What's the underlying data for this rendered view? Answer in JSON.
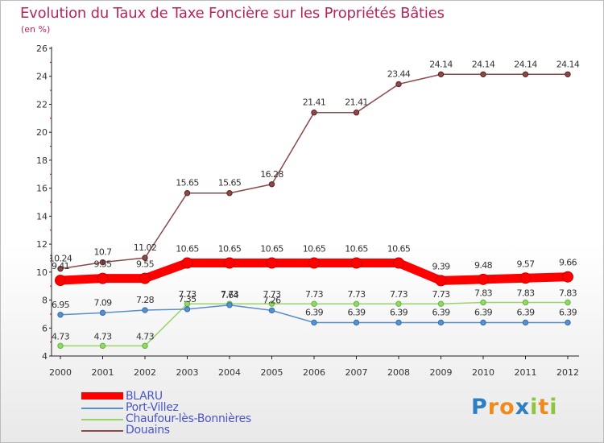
{
  "chart_data": {
    "type": "line",
    "title": "Evolution du Taux de Taxe Foncière sur les Propriétés Bâties",
    "unit_label": "(en %)",
    "xlabel": "",
    "ylabel": "",
    "ylim": [
      4,
      26
    ],
    "y_ticks": [
      4,
      6,
      8,
      10,
      12,
      14,
      16,
      18,
      20,
      22,
      24,
      26
    ],
    "categories": [
      "2000",
      "2001",
      "2002",
      "2003",
      "2004",
      "2005",
      "2006",
      "2007",
      "2008",
      "2009",
      "2010",
      "2011",
      "2012"
    ],
    "series": [
      {
        "name": "BLARU",
        "color": "#ff0000",
        "values": [
          9.41,
          9.55,
          9.55,
          10.65,
          10.65,
          10.65,
          10.65,
          10.65,
          10.65,
          9.39,
          9.48,
          9.57,
          9.66
        ],
        "labels": [
          "9.41",
          "9.55",
          "9.55",
          "10.65",
          "10.65",
          "10.65",
          "10.65",
          "10.65",
          "10.65",
          "9.39",
          "9.48",
          "9.57",
          "9.66"
        ]
      },
      {
        "name": "Port-Villez",
        "color": "#5b8fc9",
        "values": [
          6.95,
          7.09,
          7.28,
          7.35,
          7.64,
          7.26,
          6.39,
          6.39,
          6.39,
          6.39,
          6.39,
          6.39,
          6.39
        ],
        "labels": [
          "6.95",
          "7.09",
          "7.28",
          "7.35",
          "7.64",
          "7.26",
          "6.39",
          "6.39",
          "6.39",
          "6.39",
          "6.39",
          "6.39",
          "6.39"
        ]
      },
      {
        "name": "Chaufour-lès-Bonnières",
        "color": "#97d46a",
        "values": [
          4.73,
          4.73,
          4.73,
          7.73,
          7.73,
          7.73,
          7.73,
          7.73,
          7.73,
          7.73,
          7.83,
          7.83,
          7.83
        ],
        "labels": [
          "4.73",
          "4.73",
          "4.73",
          "7.73",
          "7.73",
          "7.73",
          "7.73",
          "7.73",
          "7.73",
          "7.73",
          "7.83",
          "7.83",
          "7.83"
        ]
      },
      {
        "name": "Douains",
        "color": "#8b4a4a",
        "values": [
          10.24,
          10.7,
          11.02,
          15.65,
          15.65,
          16.28,
          21.41,
          21.41,
          23.44,
          24.14,
          24.14,
          24.14,
          24.14
        ],
        "labels": [
          "10.24",
          "10.7",
          "11.02",
          "15.65",
          "15.65",
          "16.28",
          "21.41",
          "21.41",
          "23.44",
          "24.14",
          "24.14",
          "24.14",
          "24.14"
        ]
      }
    ]
  },
  "legend": {
    "items": [
      {
        "label": "BLARU"
      },
      {
        "label": "Port-Villez"
      },
      {
        "label": "Chaufour-lès-Bonnières"
      },
      {
        "label": "Douains"
      }
    ]
  },
  "logo": {
    "text": "Proxiti",
    "letters": [
      "P",
      "r",
      "o",
      "x",
      "i",
      "t",
      "i"
    ]
  },
  "colors": {
    "title": "#b5275b",
    "legend_text": "#4a56c8",
    "axis": "#222222",
    "minor_tick": "#cc0000"
  }
}
